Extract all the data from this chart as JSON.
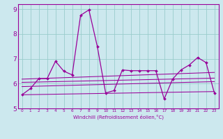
{
  "xlabel": "Windchill (Refroidissement éolien,°C)",
  "bg_color": "#cce8ee",
  "line_color": "#990099",
  "grid_color": "#99cccc",
  "axis_bg": "#cce8ee",
  "xlim": [
    -0.5,
    23.5
  ],
  "ylim": [
    5.0,
    9.2
  ],
  "yticks": [
    5,
    6,
    7,
    8,
    9
  ],
  "xticks": [
    0,
    1,
    2,
    3,
    4,
    5,
    6,
    7,
    8,
    9,
    10,
    11,
    12,
    13,
    14,
    15,
    16,
    17,
    18,
    19,
    20,
    21,
    22,
    23
  ],
  "main_x": [
    0,
    1,
    2,
    3,
    4,
    5,
    6,
    7,
    8,
    9,
    10,
    11,
    12,
    13,
    14,
    15,
    16,
    17,
    18,
    19,
    20,
    21,
    22,
    23
  ],
  "main_y": [
    5.55,
    5.8,
    6.2,
    6.2,
    6.9,
    6.5,
    6.35,
    8.75,
    8.97,
    7.5,
    5.62,
    5.72,
    6.55,
    6.52,
    6.52,
    6.52,
    6.52,
    5.38,
    6.18,
    6.55,
    6.75,
    7.05,
    6.85,
    5.62
  ],
  "trend_lines": [
    {
      "x": [
        0,
        23
      ],
      "y": [
        5.55,
        5.68
      ]
    },
    {
      "x": [
        0,
        23
      ],
      "y": [
        5.88,
        6.08
      ]
    },
    {
      "x": [
        0,
        23
      ],
      "y": [
        6.05,
        6.22
      ]
    },
    {
      "x": [
        0,
        23
      ],
      "y": [
        6.18,
        6.45
      ]
    }
  ]
}
